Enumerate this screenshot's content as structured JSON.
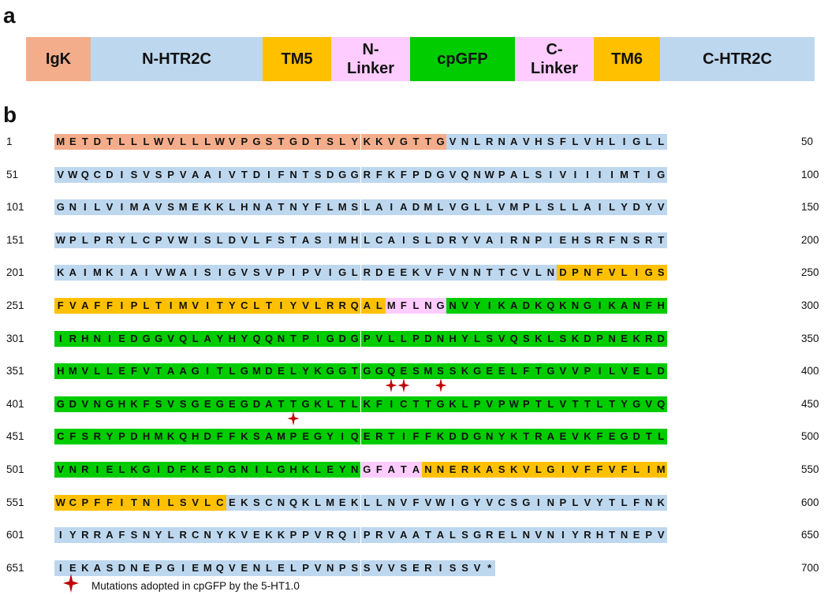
{
  "panel_a_label": "a",
  "panel_b_label": "b",
  "colors": {
    "igk": "#f4ad8a",
    "htr2c": "#bdd7ee",
    "tm": "#ffc000",
    "linker": "#ffccff",
    "cpgfp": "#00cc00",
    "star": "#c00000"
  },
  "domains": [
    {
      "label": "IgK",
      "color_key": "igk",
      "width_fraction": 0.082
    },
    {
      "label": "N-HTR2C",
      "color_key": "htr2c",
      "width_fraction": 0.218
    },
    {
      "label": "TM5",
      "color_key": "tm",
      "width_fraction": 0.087
    },
    {
      "label": "N-\nLinker",
      "color_key": "linker",
      "width_fraction": 0.1
    },
    {
      "label": "cpGFP",
      "color_key": "cpgfp",
      "width_fraction": 0.133
    },
    {
      "label": "C-\nLinker",
      "color_key": "linker",
      "width_fraction": 0.1
    },
    {
      "label": "TM6",
      "color_key": "tm",
      "width_fraction": 0.084
    },
    {
      "label": "C-HTR2C",
      "color_key": "htr2c",
      "width_fraction": 0.196
    }
  ],
  "sequence": [
    {
      "start": "1",
      "end": "50",
      "residues": "METDTLLLWVLLLWVPGSTGDTSLYKKVGTTGVNLRNAVHSFLVHLIGLL"
    },
    {
      "start": "51",
      "end": "100",
      "residues": "VWQCDISVSPVAAIVTDIFNTSDGGRFKFPDGVQNWPALSIVIIIIMTIG"
    },
    {
      "start": "101",
      "end": "150",
      "residues": "GNILVIMAVSMEKKLHNATNYFLMSLAIADMLVGLLVMPLSLLAILYDYV"
    },
    {
      "start": "151",
      "end": "200",
      "residues": "WPLPRYLCPVWISLDVLFSTASIMHLCAISLDRYVAIRNPIEHSRFNSRT"
    },
    {
      "start": "201",
      "end": "250",
      "residues": "KAIMKIAIVWAISIGVSVPIPVIGLRDEEKVFVNNTTCVLNDPNFVLIGS"
    },
    {
      "start": "251",
      "end": "300",
      "residues": "FVAFFIPLTIMVITYCLTIYVLRRQALMFLNGNVYIKADKQKNGIKANFH"
    },
    {
      "start": "301",
      "end": "350",
      "residues": "IRHNIEDGGVQLAYHYQQNTPIGDGPVLLPDNHYLSVQSKLSKDPNEKRD"
    },
    {
      "start": "351",
      "end": "400",
      "residues": "HMVLLEFVTAAGITLGMDELYKGGTGGQESMSSKGEELFTGVVPILVELD"
    },
    {
      "start": "401",
      "end": "450",
      "residues": "GDVNGHKFSVSGEGEGDATTGKLTLKFICTTGKLPVPWPTLVTTLTYGVQ"
    },
    {
      "start": "451",
      "end": "500",
      "residues": "CFSRYPDHMKQHDFFKSAMPEGYIQERTIFFKDDGNYKTRAEVKFEGDTL"
    },
    {
      "start": "501",
      "end": "550",
      "residues": "VNRIELKGIDFKEDGNILGHKLEYNGFATANNERKASKVLGIVFFVFLIM"
    },
    {
      "start": "551",
      "end": "600",
      "residues": "WCPFFITNILSVLCEKSCNQKLMEKLLNVFVWIGYVCSGINPLVYTLFNK"
    },
    {
      "start": "601",
      "end": "650",
      "residues": "IYRRAFSNYLRCNYKVEKKPPVRQIPRVAATALSGRELNVNIYRHTNEPV"
    },
    {
      "start": "651",
      "end": "700",
      "residues": "IEKASDNEPGIEMQVENLELPVNPSSVVSERISSV*"
    }
  ],
  "region_spans": [
    {
      "from": 1,
      "to": 32,
      "color_key": "igk"
    },
    {
      "from": 33,
      "to": 241,
      "color_key": "htr2c"
    },
    {
      "from": 242,
      "to": 277,
      "color_key": "tm"
    },
    {
      "from": 278,
      "to": 282,
      "color_key": "linker"
    },
    {
      "from": 283,
      "to": 525,
      "color_key": "cpgfp"
    },
    {
      "from": 526,
      "to": 530,
      "color_key": "linker"
    },
    {
      "from": 531,
      "to": 564,
      "color_key": "tm"
    },
    {
      "from": 565,
      "to": 686,
      "color_key": "htr2c"
    }
  ],
  "mutation_positions": [
    378,
    379,
    382,
    420
  ],
  "legend": {
    "text": "Mutations adopted in cpGFP by the 5-HT1.0",
    "icon": "four-point-star-icon"
  }
}
